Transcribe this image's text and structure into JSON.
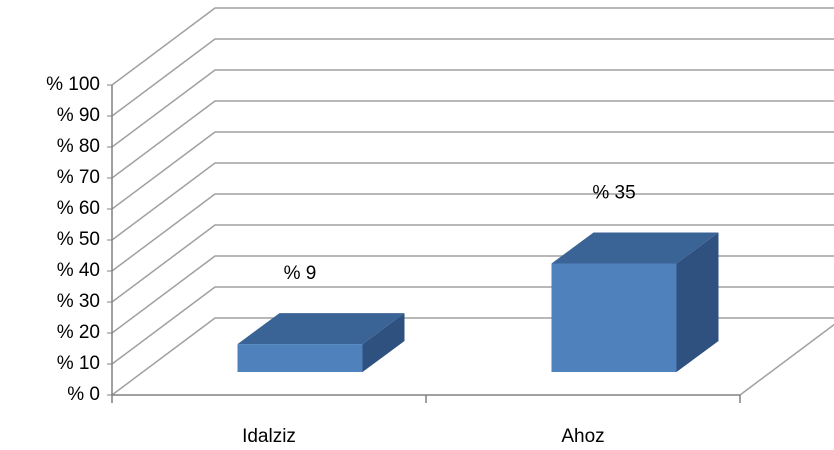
{
  "chart_data": {
    "type": "bar3d",
    "categories": [
      "Idalziz",
      "Ahoz"
    ],
    "values": [
      9,
      35
    ],
    "value_labels": [
      "% 9",
      "% 35"
    ],
    "color": "#4f81bd",
    "ylim": [
      0,
      100
    ],
    "yticks": [
      {
        "value": 0,
        "label": "% 0"
      },
      {
        "value": 10,
        "label": "% 10"
      },
      {
        "value": 20,
        "label": "% 20"
      },
      {
        "value": 30,
        "label": "% 30"
      },
      {
        "value": 40,
        "label": "% 40"
      },
      {
        "value": 50,
        "label": "% 50"
      },
      {
        "value": 60,
        "label": "% 60"
      },
      {
        "value": 70,
        "label": "% 70"
      },
      {
        "value": 80,
        "label": "% 80"
      },
      {
        "value": 90,
        "label": "% 90"
      },
      {
        "value": 100,
        "label": "% 100"
      }
    ],
    "grid": true
  }
}
